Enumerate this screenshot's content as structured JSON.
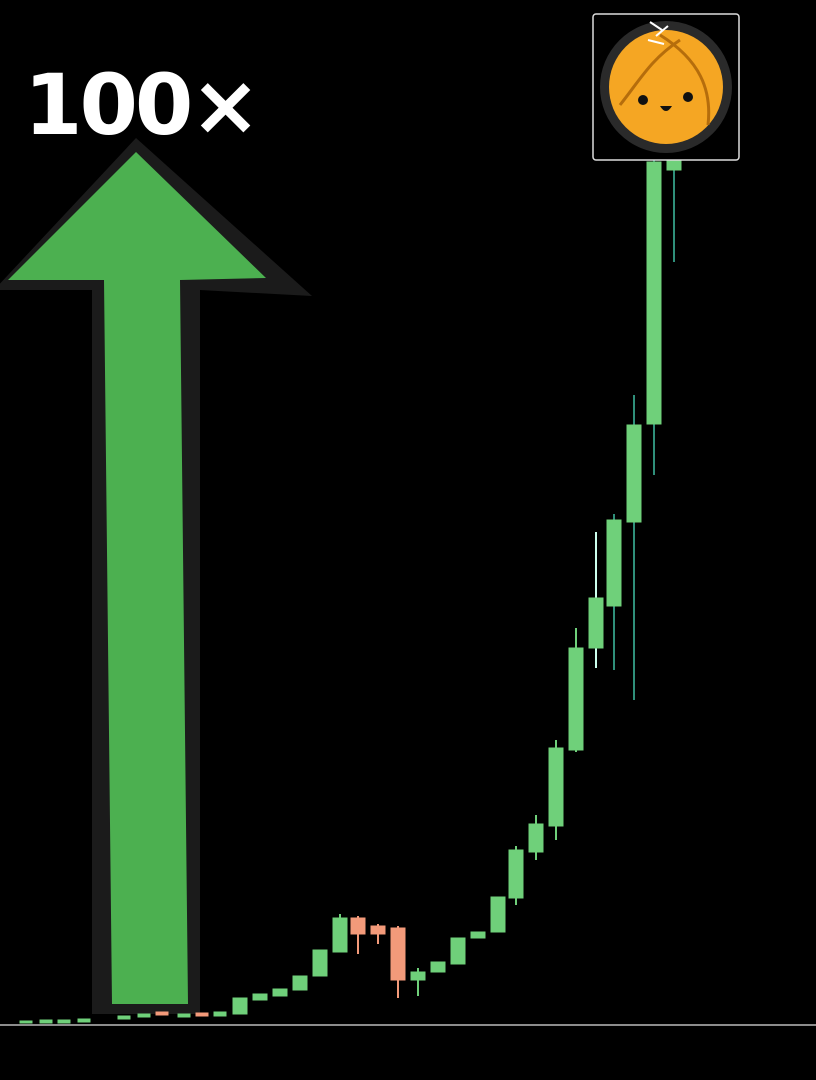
{
  "headline": "100×"
}
